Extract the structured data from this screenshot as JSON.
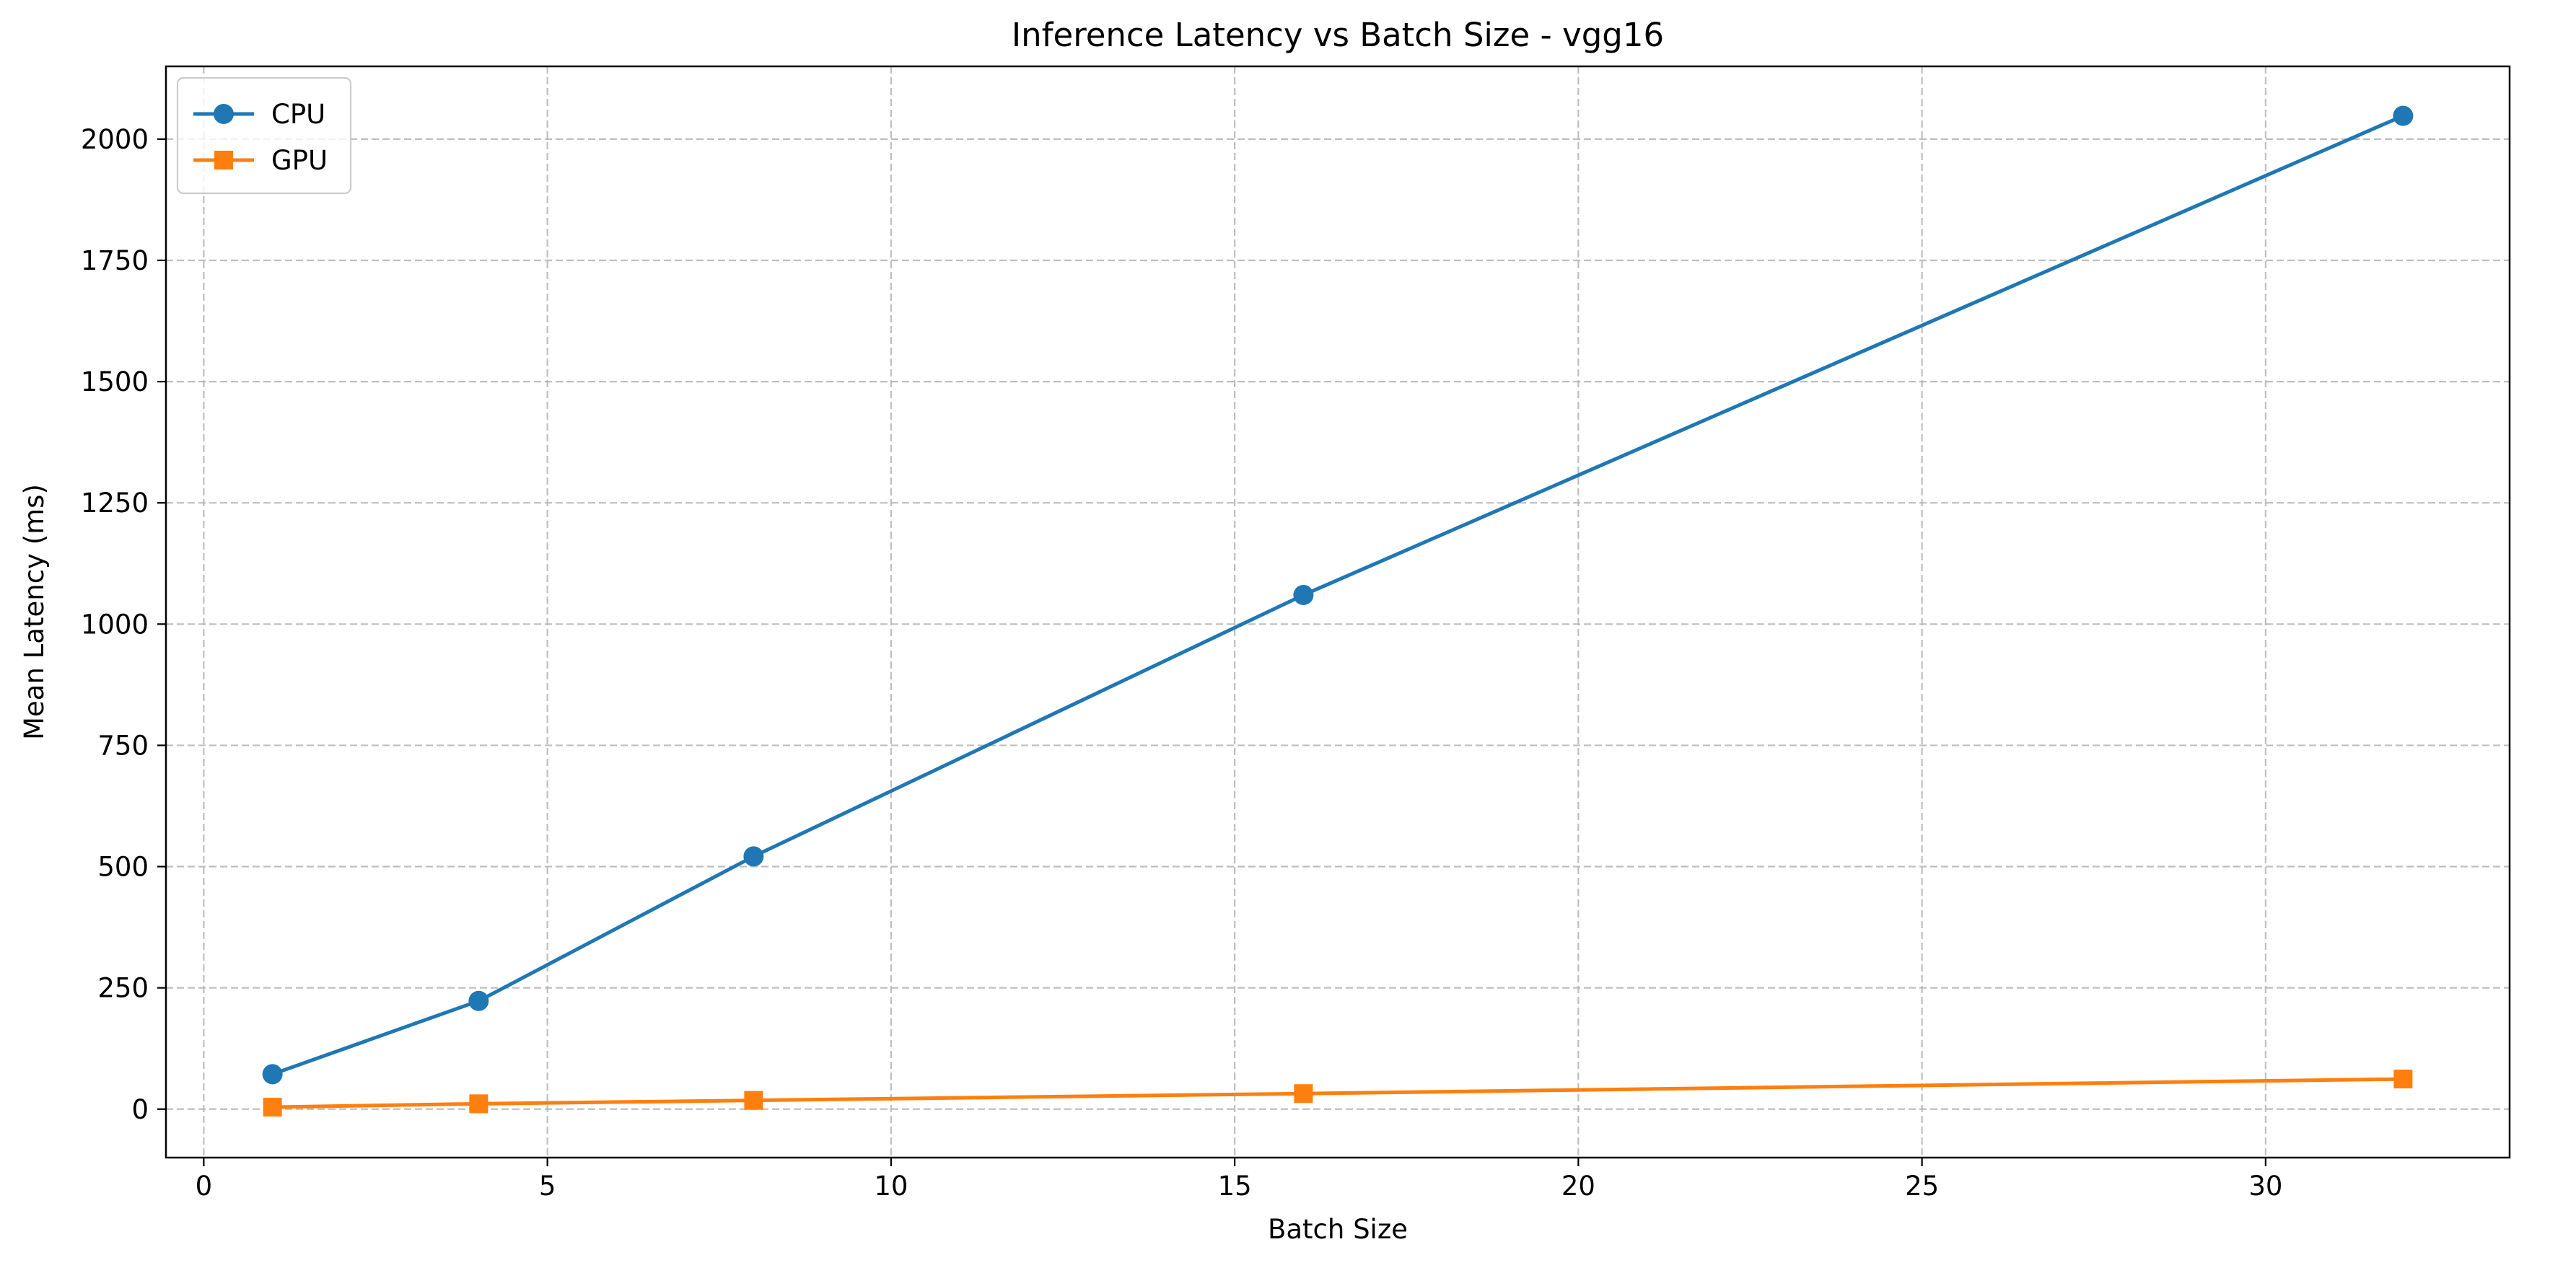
{
  "chart_data": {
    "type": "line",
    "title": "Inference Latency vs Batch Size - vgg16",
    "xlabel": "Batch Size",
    "ylabel": "Mean Latency (ms)",
    "xlim": [
      -0.55,
      33.55
    ],
    "ylim": [
      -100,
      2150
    ],
    "xticks": [
      0,
      5,
      10,
      15,
      20,
      25,
      30
    ],
    "yticks": [
      0,
      250,
      500,
      750,
      1000,
      1250,
      1500,
      1750,
      2000
    ],
    "grid": true,
    "legend_position": "top-left",
    "series": [
      {
        "name": "CPU",
        "color": "#1f77b4",
        "marker": "circle",
        "x": [
          1,
          4,
          8,
          16,
          32
        ],
        "y": [
          72,
          223,
          521,
          1060,
          2048
        ]
      },
      {
        "name": "GPU",
        "color": "#ff7f0e",
        "marker": "square",
        "x": [
          1,
          4,
          8,
          16,
          32
        ],
        "y": [
          4,
          11,
          18,
          32,
          62
        ]
      }
    ]
  }
}
